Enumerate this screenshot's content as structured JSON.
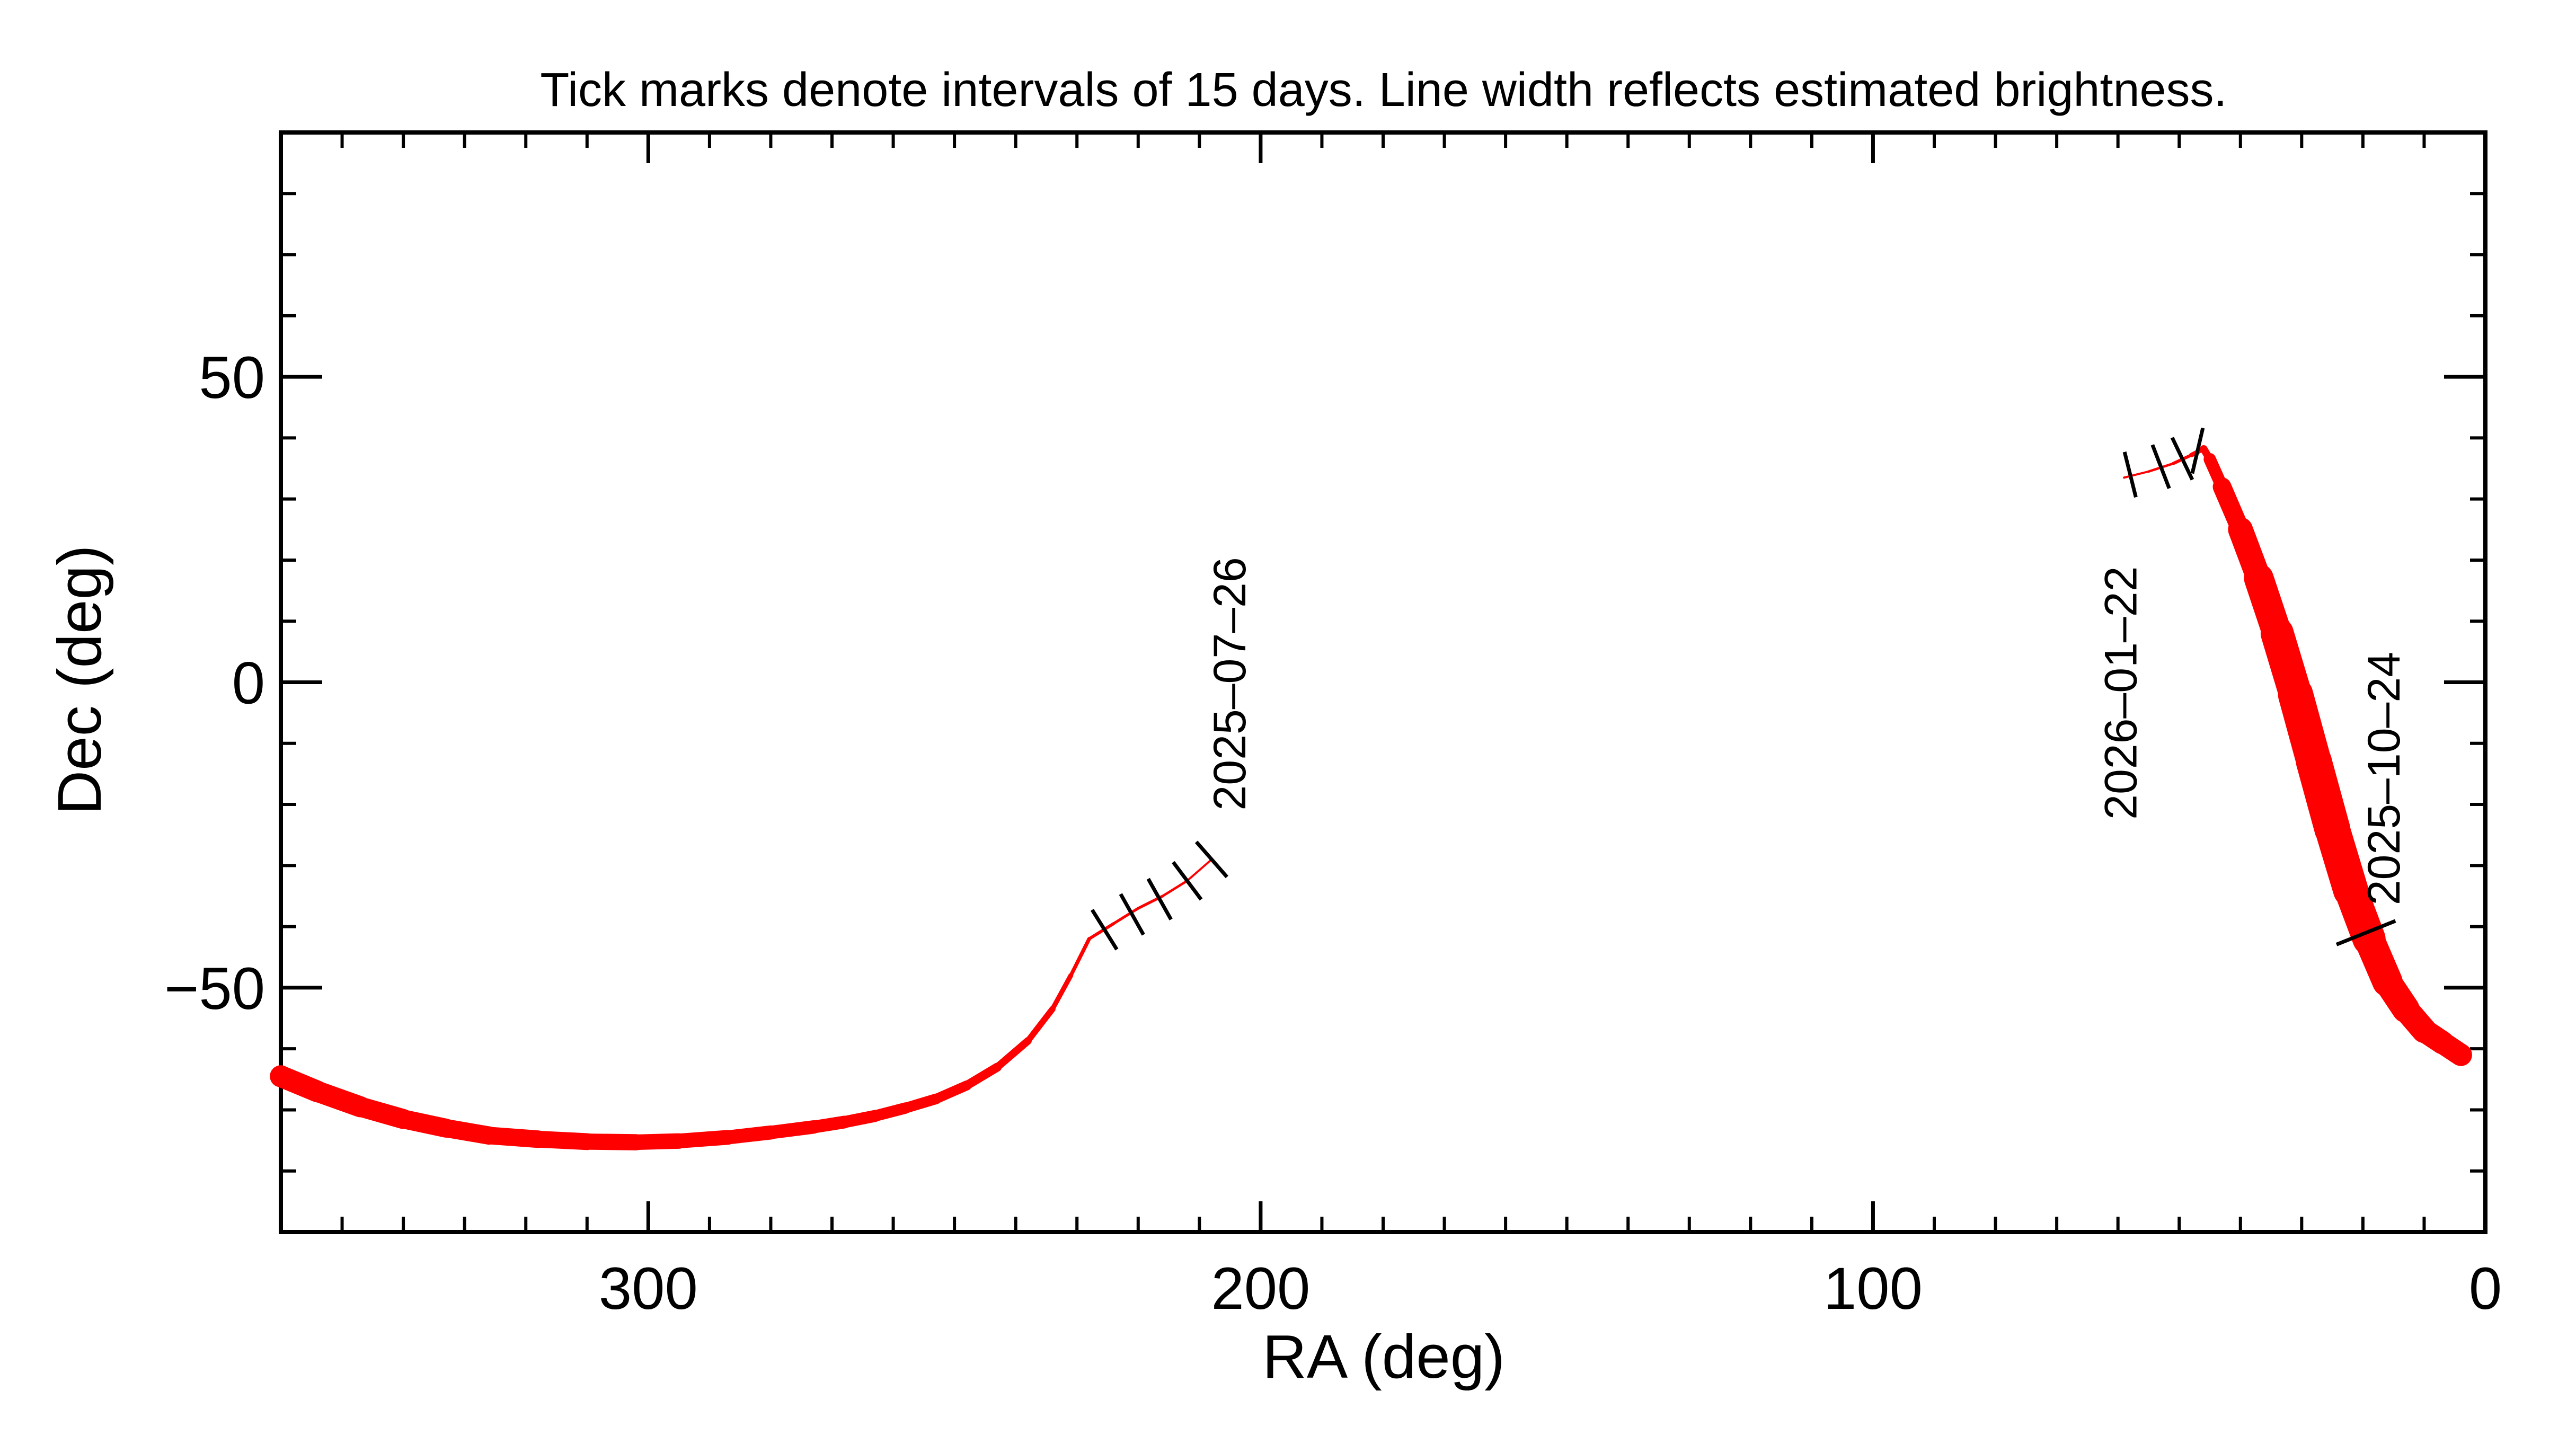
{
  "chart_data": {
    "type": "scatter",
    "title": "Tick marks denote intervals of 15 days.  Line width reflects estimated brightness.",
    "xlabel": "RA (deg)",
    "ylabel": "Dec (deg)",
    "xlim": [
      360,
      0
    ],
    "ylim": [
      -90,
      90
    ],
    "x_major_ticks": [
      300,
      200,
      100,
      0
    ],
    "x_tick_labels": [
      "300",
      "200",
      "100",
      "0"
    ],
    "y_major_ticks": [
      50,
      0,
      -50
    ],
    "y_tick_labels": [
      "50",
      "0",
      "−50"
    ],
    "x_minor_step": 10,
    "y_minor_step": 10,
    "grid": false,
    "path_color": "#ff0000",
    "tick_color": "#000000",
    "series": [
      {
        "values": [
          {
            "ra": 360,
            "dec": -64.5,
            "w": 32
          },
          {
            "ra": 354,
            "dec": -67,
            "w": 31
          },
          {
            "ra": 347,
            "dec": -69.5,
            "w": 30
          },
          {
            "ra": 340,
            "dec": -71.5,
            "w": 28
          },
          {
            "ra": 333,
            "dec": -73,
            "w": 27
          },
          {
            "ra": 326,
            "dec": -74.2,
            "w": 26
          },
          {
            "ra": 318,
            "dec": -74.8,
            "w": 25
          },
          {
            "ra": 310,
            "dec": -75.2,
            "w": 24
          },
          {
            "ra": 302,
            "dec": -75.3,
            "w": 23
          },
          {
            "ra": 295,
            "dec": -75.1,
            "w": 22
          },
          {
            "ra": 287,
            "dec": -74.5,
            "w": 21
          },
          {
            "ra": 280,
            "dec": -73.7,
            "w": 20
          },
          {
            "ra": 273,
            "dec": -72.8,
            "w": 19
          },
          {
            "ra": 268,
            "dec": -72,
            "w": 18
          },
          {
            "ra": 263,
            "dec": -71,
            "w": 17
          },
          {
            "ra": 258,
            "dec": -69.7,
            "w": 16
          },
          {
            "ra": 253,
            "dec": -68.2,
            "w": 15
          },
          {
            "ra": 248,
            "dec": -66,
            "w": 14
          },
          {
            "ra": 243,
            "dec": -63,
            "w": 12
          },
          {
            "ra": 238,
            "dec": -58.7,
            "w": 10
          },
          {
            "ra": 234,
            "dec": -53.5,
            "w": 8
          },
          {
            "ra": 231,
            "dec": -48,
            "w": 6
          },
          {
            "ra": 228,
            "dec": -42,
            "w": 5
          },
          {
            "ra": 224,
            "dec": -39.5,
            "w": 4
          },
          {
            "ra": 220,
            "dec": -37,
            "w": 4
          },
          {
            "ra": 216,
            "dec": -35,
            "w": 4
          },
          {
            "ra": 212,
            "dec": -32.5,
            "w": 3
          },
          {
            "ra": 208,
            "dec": -29,
            "w": 3
          }
        ],
        "ticks": [
          {
            "ra": 225.5,
            "dec": -40.5
          },
          {
            "ra": 221,
            "dec": -38
          },
          {
            "ra": 216.5,
            "dec": -35.5
          },
          {
            "ra": 212,
            "dec": -32.5
          },
          {
            "ra": 208,
            "dec": -29
          }
        ],
        "date_label": {
          "text": "2025–07–26",
          "ra": 202.5,
          "dec": -21
        }
      },
      {
        "values": [
          {
            "ra": 59,
            "dec": 33.5,
            "w": 3
          },
          {
            "ra": 55,
            "dec": 34.5,
            "w": 3
          },
          {
            "ra": 51,
            "dec": 35.8,
            "w": 4
          },
          {
            "ra": 48,
            "dec": 37.2,
            "w": 5
          },
          {
            "ra": 46,
            "dec": 38.2,
            "w": 8
          },
          {
            "ra": 45,
            "dec": 36.5,
            "w": 14
          },
          {
            "ra": 43,
            "dec": 32,
            "w": 22
          },
          {
            "ra": 40,
            "dec": 25,
            "w": 32
          },
          {
            "ra": 37,
            "dec": 17,
            "w": 40
          },
          {
            "ra": 34,
            "dec": 8,
            "w": 46
          },
          {
            "ra": 31,
            "dec": -2,
            "w": 50
          },
          {
            "ra": 28,
            "dec": -13,
            "w": 52
          },
          {
            "ra": 25,
            "dec": -24,
            "w": 52
          },
          {
            "ra": 22,
            "dec": -34,
            "w": 50
          },
          {
            "ra": 19,
            "dec": -42,
            "w": 46
          },
          {
            "ra": 16,
            "dec": -49,
            "w": 42
          },
          {
            "ra": 13,
            "dec": -53.5,
            "w": 38
          },
          {
            "ra": 10,
            "dec": -57,
            "w": 35
          },
          {
            "ra": 7,
            "dec": -59,
            "w": 33
          },
          {
            "ra": 4,
            "dec": -61,
            "w": 32
          }
        ],
        "ticks": [
          {
            "ra": 58,
            "dec": 34
          },
          {
            "ra": 53,
            "dec": 35.3
          },
          {
            "ra": 49.5,
            "dec": 36.6
          },
          {
            "ra": 47,
            "dec": 37.9
          },
          {
            "ra": 19.5,
            "dec": -41
          }
        ],
        "date_labels": [
          {
            "text": "2026–01–22",
            "ra": 57,
            "dec": -22.5
          },
          {
            "text": "2025–10–24",
            "ra": 14,
            "dec": -36.5
          }
        ]
      }
    ]
  }
}
